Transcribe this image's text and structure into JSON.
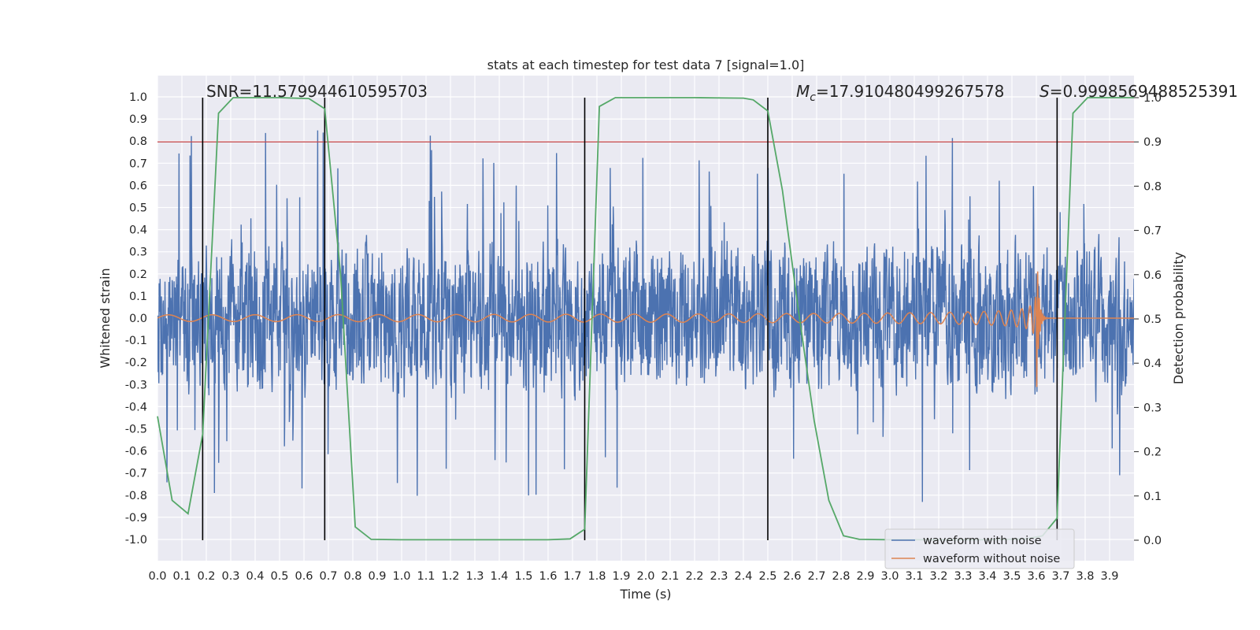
{
  "chart_data": {
    "type": "line",
    "title": "stats at each timestep for test data 7 [signal=1.0]",
    "xlabel": "Time (s)",
    "ylabel": "Whitened strain",
    "y2label": "Detection probability",
    "xlim": [
      0.0,
      4.0
    ],
    "ylim": [
      -1.1,
      1.1
    ],
    "y2lim": [
      -0.05,
      1.0
    ],
    "x_ticks": [
      "0.0",
      "0.1",
      "0.2",
      "0.3",
      "0.4",
      "0.5",
      "0.6",
      "0.7",
      "0.8",
      "0.9",
      "1.0",
      "1.1",
      "1.2",
      "1.3",
      "1.4",
      "1.5",
      "1.6",
      "1.7",
      "1.8",
      "1.9",
      "2.0",
      "2.1",
      "2.2",
      "2.3",
      "2.4",
      "2.5",
      "2.6",
      "2.7",
      "2.8",
      "2.9",
      "3.0",
      "3.1",
      "3.2",
      "3.3",
      "3.4",
      "3.5",
      "3.6",
      "3.7",
      "3.8",
      "3.9"
    ],
    "y_ticks": [
      "1.0",
      "0.9",
      "0.8",
      "0.7",
      "0.6",
      "0.5",
      "0.4",
      "0.3",
      "0.2",
      "0.1",
      "0.0",
      "-0.1",
      "-0.2",
      "-0.3",
      "-0.4",
      "-0.5",
      "-0.6",
      "-0.7",
      "-0.8",
      "-0.9",
      "-1.0"
    ],
    "y2_ticks": [
      "1.0",
      "0.9",
      "0.8",
      "0.7",
      "0.6",
      "0.5",
      "0.4",
      "0.3",
      "0.2",
      "0.1",
      "0.0"
    ],
    "grid": true,
    "legend_position": "bottom-right",
    "annotations": {
      "snr": "SNR=11.579944610595703",
      "mc_symbol": "M",
      "mc_sub": "c",
      "mc_value": "=17.910480499267578",
      "s_symbol": "S",
      "s_value": "=0.9998569488525391"
    },
    "threshold": {
      "y2": 0.9,
      "color": "#c44e52"
    },
    "vertical_markers_x": [
      0.185,
      0.685,
      1.75,
      2.5,
      3.685
    ],
    "series": [
      {
        "name": "waveform with noise",
        "color": "#4c72b0",
        "description_stats": {
          "typical_amplitude": 0.3,
          "max": 1.0,
          "min": -0.95
        }
      },
      {
        "name": "waveform without noise",
        "color": "#dd8452",
        "merger_time": 3.6,
        "amplitude_start": 0.015,
        "amplitude_peak": 0.48
      },
      {
        "name_hidden": "detection probability",
        "color": "#55a868",
        "x": [
          0.0,
          0.06,
          0.125,
          0.185,
          0.25,
          0.31,
          0.5,
          0.62,
          0.685,
          0.75,
          0.81,
          0.875,
          1.0,
          1.2,
          1.4,
          1.6,
          1.69,
          1.75,
          1.81,
          1.875,
          2.0,
          2.2,
          2.4,
          2.44,
          2.5,
          2.56,
          2.625,
          2.69,
          2.75,
          2.81,
          2.875,
          3.0,
          3.2,
          3.4,
          3.56,
          3.625,
          3.685,
          3.75,
          3.81,
          3.875,
          4.0
        ],
        "y": [
          0.28,
          0.09,
          0.06,
          0.24,
          0.965,
          1.0,
          1.0,
          0.998,
          0.975,
          0.6,
          0.03,
          0.002,
          0.001,
          0.001,
          0.001,
          0.001,
          0.003,
          0.025,
          0.98,
          1.0,
          1.0,
          1.0,
          0.999,
          0.995,
          0.97,
          0.79,
          0.52,
          0.27,
          0.09,
          0.01,
          0.002,
          0.001,
          0.001,
          0.001,
          0.003,
          0.01,
          0.05,
          0.965,
          1.0,
          1.0,
          1.0
        ]
      }
    ]
  },
  "legend": {
    "with_noise": "waveform with noise",
    "without_noise": "waveform without noise"
  }
}
